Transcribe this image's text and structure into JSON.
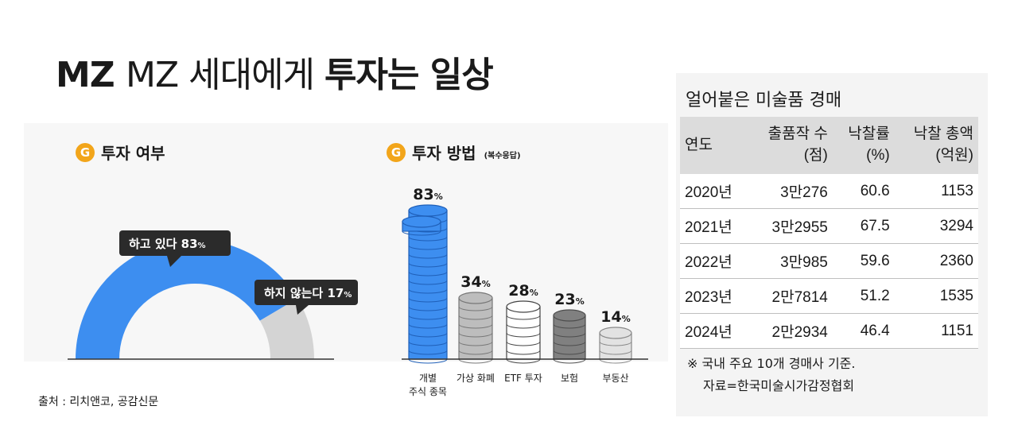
{
  "headline": {
    "part1": "MZ 세대에게 ",
    "part2": "투자는 일상"
  },
  "left": {
    "icon_letter": "G",
    "title": "투자 여부",
    "chart_data": {
      "type": "pie",
      "categories": [
        "하고 있다",
        "하지 않는다"
      ],
      "values": [
        83,
        17
      ],
      "unit": "%",
      "colors": [
        "#3d8ef0",
        "#d4d4d4"
      ],
      "labels": [
        "하고 있다",
        "하지 않는다"
      ]
    }
  },
  "middle": {
    "icon_letter": "G",
    "title": "투자 방법",
    "subtitle": "(복수응답)",
    "chart_data": {
      "type": "bar",
      "categories": [
        "개별 주식 종목",
        "가상 화폐",
        "ETF 투자",
        "보험",
        "부동산"
      ],
      "category_lines": [
        [
          "개별",
          "주식 종목"
        ],
        [
          "가상 화폐"
        ],
        [
          "ETF 투자"
        ],
        [
          "보험"
        ],
        [
          "부동산"
        ]
      ],
      "values": [
        83,
        34,
        28,
        23,
        14
      ],
      "unit": "%",
      "colors": [
        "#3d8ef0",
        "#bdbdbd",
        "#ffffff",
        "#808080",
        "#e2e2e2"
      ]
    }
  },
  "source": "출처 : 리치앤코, 공감신문",
  "table": {
    "title": "얼어붙은 미술품 경매",
    "headers": [
      [
        "연도"
      ],
      [
        "출품작 수",
        "(점)"
      ],
      [
        "낙찰률",
        "(%)"
      ],
      [
        "낙찰 총액",
        "(억원)"
      ]
    ],
    "rows": [
      [
        "2020년",
        "3만276",
        "60.6",
        "1153"
      ],
      [
        "2021년",
        "3만2955",
        "67.5",
        "3294"
      ],
      [
        "2022년",
        "3만985",
        "59.6",
        "2360"
      ],
      [
        "2023년",
        "2만7814",
        "51.2",
        "1535"
      ],
      [
        "2024년",
        "2만2934",
        "46.4",
        "1151"
      ]
    ],
    "note_line1": "※ 국내 주요 10개 경매사 기준.",
    "note_line2": "자료=한국미술시가감정협회"
  }
}
